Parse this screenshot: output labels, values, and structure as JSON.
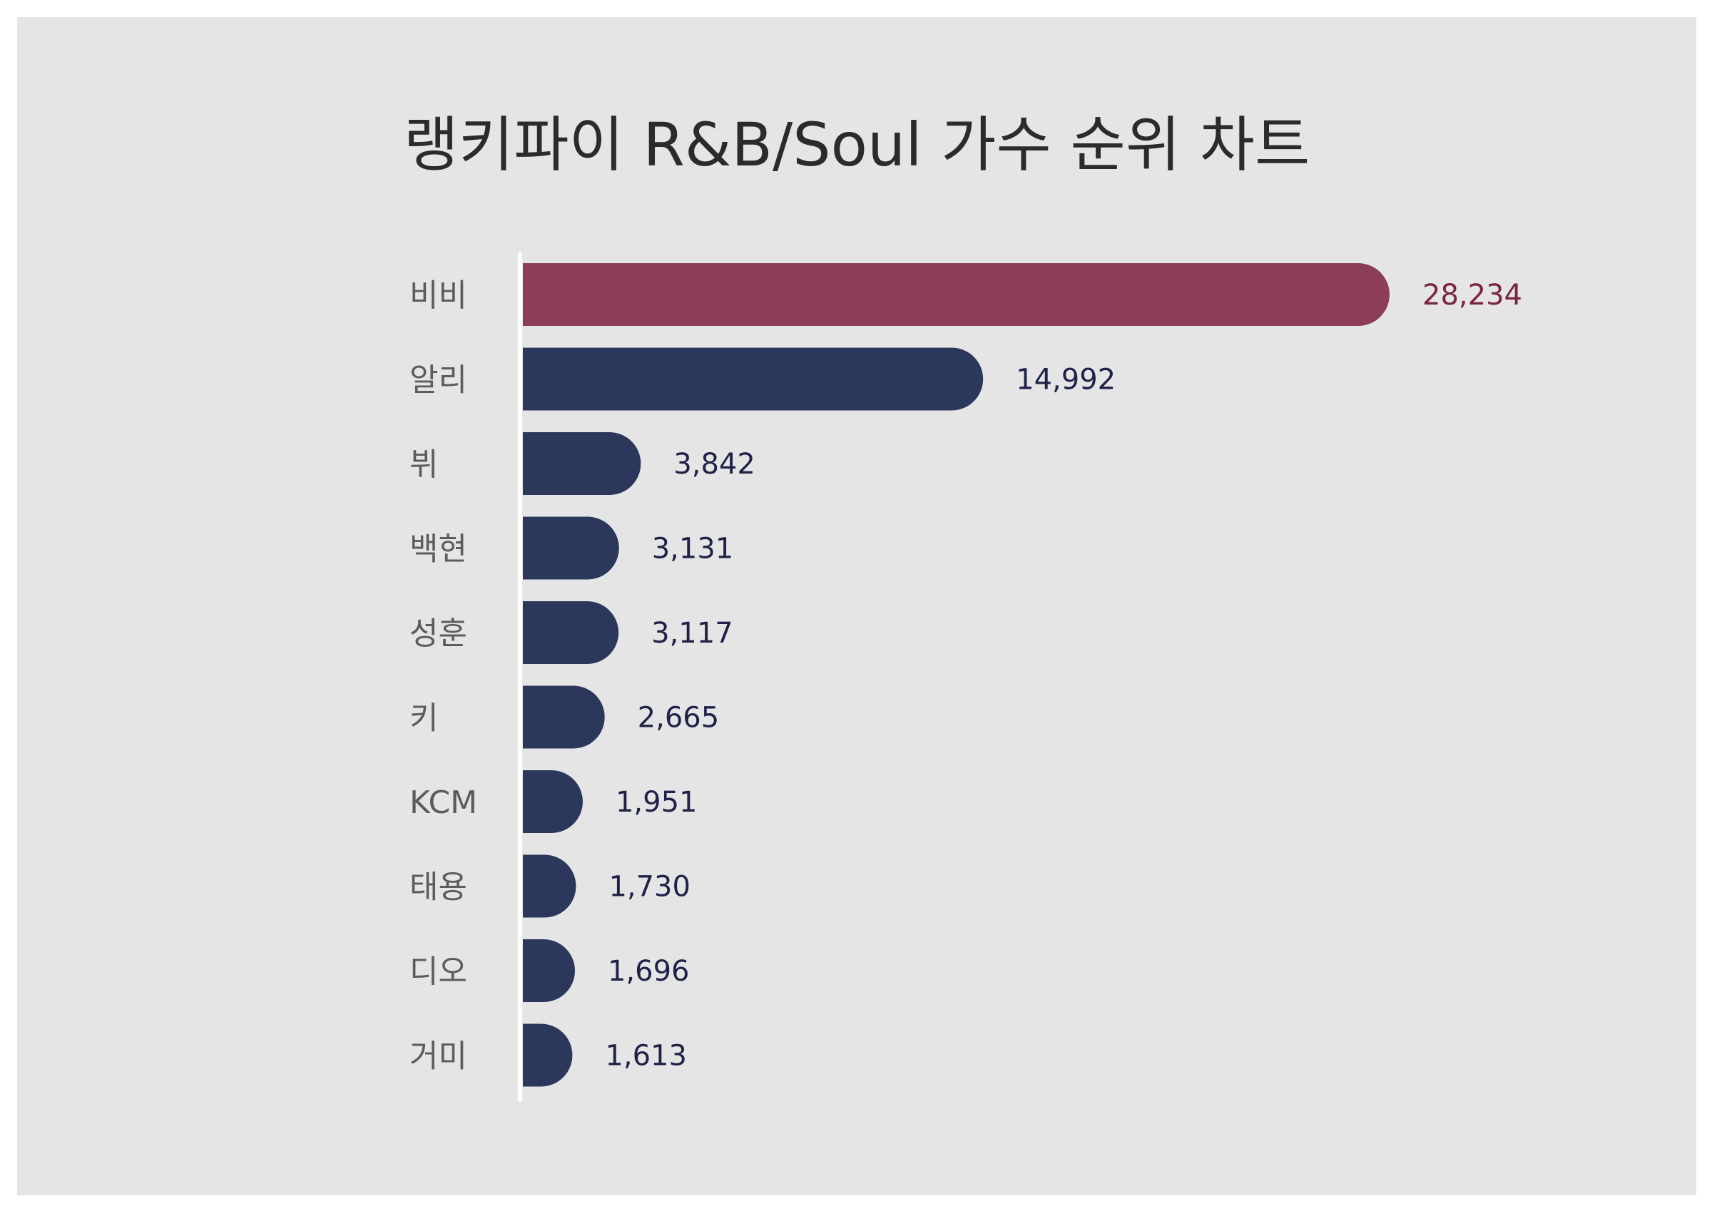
{
  "chart_data": {
    "type": "bar",
    "orientation": "horizontal",
    "title": "랭키파이 R&B/Soul 가수 순위 차트",
    "categories": [
      "비비",
      "알리",
      "뷔",
      "백현",
      "성훈",
      "키",
      "KCM",
      "태용",
      "디오",
      "거미"
    ],
    "values": [
      28234,
      14992,
      3842,
      3131,
      3117,
      2665,
      1951,
      1730,
      1696,
      1613
    ],
    "value_labels": [
      "28,234",
      "14,992",
      "3,842",
      "3,131",
      "3,117",
      "2,665",
      "1,951",
      "1,730",
      "1,696",
      "1,613"
    ],
    "highlight_index": 0,
    "xlim": [
      0,
      28234
    ],
    "colors": {
      "highlight_bar": "#8b3d59",
      "bar": "#2c375c",
      "highlight_label": "#7a2540",
      "label": "#1e2247",
      "background": "#e6e5e6",
      "axis": "#ffffff"
    }
  }
}
